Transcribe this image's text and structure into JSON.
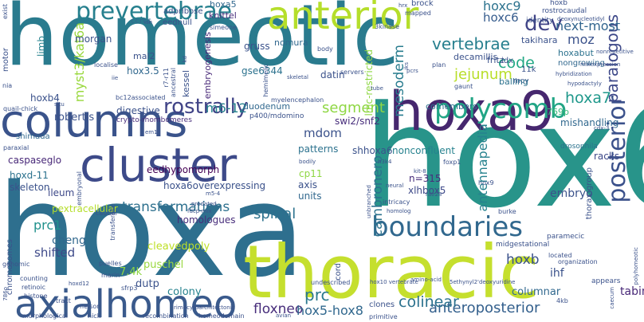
{
  "words": [
    {
      "text": "homeotic",
      "color": "#2a7b8e"
    },
    {
      "text": "hox6",
      "color": "#28948a"
    },
    {
      "text": "hoxa",
      "color": "#2e6f8e"
    },
    {
      "text": "thoracic",
      "color": "#c5df2e"
    },
    {
      "text": "columns",
      "color": "#3a538b"
    },
    {
      "text": "cluster",
      "color": "#3d4a89"
    },
    {
      "text": "hoxa9",
      "color": "#46276e"
    },
    {
      "text": "axialhomeo",
      "color": "#3a5a8c"
    },
    {
      "text": "anterior",
      "color": "#b5de2b"
    },
    {
      "text": "boundaries",
      "color": "#31688e"
    },
    {
      "text": "prevertebrae",
      "color": "#26808e"
    },
    {
      "text": "polycomb",
      "color": "#21a585"
    },
    {
      "text": "posterior",
      "color": "#3b518b"
    },
    {
      "text": "rostrally",
      "color": "#414487"
    },
    {
      "text": "dev",
      "color": "#414487"
    },
    {
      "text": "transformations",
      "color": "#2d708e"
    },
    {
      "text": "anteroposterior",
      "color": "#34608d"
    },
    {
      "text": "spinal",
      "color": "#2c728e"
    },
    {
      "text": "vertebrae",
      "color": "#277f8e"
    },
    {
      "text": "paralogous",
      "color": "#3e4989"
    },
    {
      "text": "mesoderm",
      "color": "#287c8e"
    },
    {
      "text": "jejunum",
      "color": "#b8de29"
    },
    {
      "text": "segment",
      "color": "#8fd744"
    },
    {
      "text": "code",
      "color": "#22a884"
    },
    {
      "text": "hoxa7",
      "color": "#1f988b"
    },
    {
      "text": "hoxc9",
      "color": "#2c728e"
    },
    {
      "text": "hoxc6",
      "color": "#365c8d"
    },
    {
      "text": "m6-12",
      "color": "#26828e"
    },
    {
      "text": "next-most",
      "color": "#32658e"
    },
    {
      "text": "moz",
      "color": "#3b528b"
    },
    {
      "text": "colinear",
      "color": "#2c728e"
    },
    {
      "text": "floxneo",
      "color": "#472d7b"
    },
    {
      "text": "hox5-hox8",
      "color": "#31688e"
    },
    {
      "text": "prc",
      "color": "#2a788e"
    },
    {
      "text": "prc1",
      "color": "#21918c"
    },
    {
      "text": "hoxb",
      "color": "#3b528b"
    },
    {
      "text": "shifted",
      "color": "#3e4a89"
    },
    {
      "text": "hoxb4",
      "color": "#3b528b"
    },
    {
      "text": "myst3/kat6a",
      "color": "#99d83d"
    },
    {
      "text": "cambronero",
      "color": "#2c728e"
    },
    {
      "text": "antennapedia",
      "color": "#26828e"
    },
    {
      "text": "mdom",
      "color": "#3b528b"
    },
    {
      "text": "embryo",
      "color": "#3b528b"
    },
    {
      "text": "columnar",
      "color": "#31688e"
    },
    {
      "text": "tabin",
      "color": "#482878"
    },
    {
      "text": "ihf",
      "color": "#3b528b"
    },
    {
      "text": "cheng",
      "color": "#31688e"
    },
    {
      "text": "dutp",
      "color": "#3b528b"
    },
    {
      "text": "7.4k",
      "color": "#8fd744"
    },
    {
      "text": "cleavedpoly",
      "color": "#bddf26"
    },
    {
      "text": "puschel",
      "color": "#98d83e"
    },
    {
      "text": "colony",
      "color": "#26828e"
    },
    {
      "text": "eedhypomorph",
      "color": "#440154"
    },
    {
      "text": "hoxa6overexpressing",
      "color": "#3b528b"
    },
    {
      "text": "homologues",
      "color": "#472d7b"
    },
    {
      "text": "pextracellular",
      "color": "#b5de2b"
    },
    {
      "text": "patterns",
      "color": "#2c728e"
    },
    {
      "text": "nonconfluent",
      "color": "#26828e"
    },
    {
      "text": "shhoxa6",
      "color": "#3b528b"
    },
    {
      "text": "xlhbox5",
      "color": "#3e4989"
    },
    {
      "text": "units",
      "color": "#31688e"
    },
    {
      "text": "axis",
      "color": "#3b528b"
    },
    {
      "text": "n=315",
      "color": "#472d7b"
    },
    {
      "text": "cp11",
      "color": "#8fd744"
    },
    {
      "text": "racks",
      "color": "#3e4989"
    },
    {
      "text": "drosophila",
      "color": "#2c728e"
    },
    {
      "text": "thorax-group",
      "color": "#3b528b"
    },
    {
      "text": "mishandling",
      "color": "#31688e"
    },
    {
      "text": "769p",
      "color": "#35b779"
    },
    {
      "text": "comembers",
      "color": "#2c728e"
    },
    {
      "text": "swi2/snf2",
      "color": "#472d7b"
    },
    {
      "text": "duodenum",
      "color": "#31688e"
    },
    {
      "text": "p400/mdomino",
      "color": "#3b528b"
    },
    {
      "text": "digestive",
      "color": "#3b528b"
    },
    {
      "text": "crypto-rhombomeres",
      "color": "#472d7b"
    },
    {
      "text": "robertis",
      "color": "#3b528b"
    },
    {
      "text": "hoxd-11",
      "color": "#2c728e"
    },
    {
      "text": "caspaseglo",
      "color": "#482878"
    },
    {
      "text": "skeleton",
      "color": "#3b528b"
    },
    {
      "text": "ileum",
      "color": "#3e4989"
    },
    {
      "text": "shimada",
      "color": "#31688e"
    },
    {
      "text": "gse6344",
      "color": "#2c728e"
    },
    {
      "text": "datin",
      "color": "#3b528b"
    },
    {
      "text": "gruss",
      "color": "#3b528b"
    },
    {
      "text": "lmc-restricted",
      "color": "#8fd744"
    },
    {
      "text": "embryogenesis",
      "color": "#482878"
    },
    {
      "text": "kessel",
      "color": "#3b528b"
    },
    {
      "text": "hox3.5",
      "color": "#31688e"
    },
    {
      "text": "mal2",
      "color": "#3b528b"
    },
    {
      "text": "limb",
      "color": "#26828e"
    },
    {
      "text": "morgan",
      "color": "#3b528b"
    },
    {
      "text": "hoxa5",
      "color": "#31688e"
    },
    {
      "text": "knittel",
      "color": "#472d7b"
    },
    {
      "text": "adpribose",
      "color": "#3b528b"
    },
    {
      "text": "eednull",
      "color": "#3b528b"
    },
    {
      "text": "ccrcc",
      "color": "#31688e"
    },
    {
      "text": "nomura",
      "color": "#31688e"
    },
    {
      "text": "fritz",
      "color": "#3b528b"
    },
    {
      "text": "takihara",
      "color": "#3b528b"
    },
    {
      "text": "decamillis",
      "color": "#3b528b"
    },
    {
      "text": "idx",
      "color": "#3b528b"
    },
    {
      "text": "11k",
      "color": "#3b528b"
    },
    {
      "text": "moy",
      "color": "#3b528b"
    },
    {
      "text": "balling",
      "color": "#2c728e"
    },
    {
      "text": "hoxabut",
      "color": "#2c728e"
    },
    {
      "text": "nongrowing",
      "color": "#31688e"
    },
    {
      "text": "rostrocaudal",
      "color": "#3b528b"
    },
    {
      "text": "deoxynucleotidyl",
      "color": "#3b528b"
    },
    {
      "text": "identity",
      "color": "#3b528b"
    },
    {
      "text": "brock",
      "color": "#3b528b"
    },
    {
      "text": "mapped",
      "color": "#3b528b"
    },
    {
      "text": "3kinase",
      "color": "#3b528b"
    },
    {
      "text": "simeone",
      "color": "#3b528b"
    },
    {
      "text": "hoxb",
      "color": "#3b528b"
    },
    {
      "text": "motor",
      "color": "#3b528b"
    },
    {
      "text": "exist",
      "color": "#3b528b"
    },
    {
      "text": "nia",
      "color": "#3b528b"
    },
    {
      "text": "servers",
      "color": "#3b528b"
    },
    {
      "text": "skeletal",
      "color": "#3b528b"
    },
    {
      "text": "hemimelic",
      "color": "#3b528b"
    },
    {
      "text": "localise",
      "color": "#3b528b"
    },
    {
      "text": "r7-r11",
      "color": "#3b528b"
    },
    {
      "text": "ancestral",
      "color": "#3b528b"
    },
    {
      "text": "bc12associated",
      "color": "#3b528b"
    },
    {
      "text": "myelencephalon",
      "color": "#3b528b"
    },
    {
      "text": "h3k4",
      "color": "#3b528b"
    },
    {
      "text": "quail-chick",
      "color": "#3b528b"
    },
    {
      "text": "situ",
      "color": "#3b528b"
    },
    {
      "text": "paraxial",
      "color": "#3b528b"
    },
    {
      "text": "embryonal",
      "color": "#3b528b"
    },
    {
      "text": "unbranched",
      "color": "#3b528b"
    },
    {
      "text": "bodily",
      "color": "#3b528b"
    },
    {
      "text": "foxp1",
      "color": "#3b528b"
    },
    {
      "text": "kit-8",
      "color": "#3b528b"
    },
    {
      "text": "rae28",
      "color": "#3b528b"
    },
    {
      "text": "hox9",
      "color": "#3b528b"
    },
    {
      "text": "intricacy",
      "color": "#3b528b"
    },
    {
      "text": "homolog",
      "color": "#3b528b"
    },
    {
      "text": "burke",
      "color": "#3b528b"
    },
    {
      "text": "located",
      "color": "#3b528b"
    },
    {
      "text": "midgestational",
      "color": "#3b528b"
    },
    {
      "text": "paramecic",
      "color": "#3b528b"
    },
    {
      "text": "organization",
      "color": "#3b528b"
    },
    {
      "text": "appears",
      "color": "#3b528b"
    },
    {
      "text": "cdx-3",
      "color": "#3b528b"
    },
    {
      "text": "genomic",
      "color": "#3b528b"
    },
    {
      "text": "puelles",
      "color": "#3b528b"
    },
    {
      "text": "marin",
      "color": "#3b528b"
    },
    {
      "text": "sfrp3",
      "color": "#3b528b"
    },
    {
      "text": "counting",
      "color": "#3b528b"
    },
    {
      "text": "retinoic",
      "color": "#3b528b"
    },
    {
      "text": "histone",
      "color": "#3b528b"
    },
    {
      "text": "tract",
      "color": "#3b528b"
    },
    {
      "text": "chromosomes",
      "color": "#3b528b"
    },
    {
      "text": "nelson",
      "color": "#3b528b"
    },
    {
      "text": "morphological",
      "color": "#3b528b"
    },
    {
      "text": "nick",
      "color": "#3b528b"
    },
    {
      "text": "recombination",
      "color": "#3b528b"
    },
    {
      "text": "homeodomain",
      "color": "#3b528b"
    },
    {
      "text": "rim4cytoarchitectonic",
      "color": "#3b528b"
    },
    {
      "text": "primitive",
      "color": "#3b528b"
    },
    {
      "text": "clones",
      "color": "#3b528b"
    },
    {
      "text": "undescribed",
      "color": "#3b528b"
    },
    {
      "text": "hox10 vertebrate",
      "color": "#3b528b"
    },
    {
      "text": "5ethynyl2'deoxyuridine",
      "color": "#3b528b"
    },
    {
      "text": "4kb",
      "color": "#3b528b"
    },
    {
      "text": "caecum",
      "color": "#3b528b"
    },
    {
      "text": "polyhomeotic",
      "color": "#3b528b"
    },
    {
      "text": "fdcp-mix",
      "color": "#3b528b"
    },
    {
      "text": "m5-4",
      "color": "#3b528b"
    },
    {
      "text": "cord",
      "color": "#3b528b"
    },
    {
      "text": "em1",
      "color": "#3b528b"
    },
    {
      "text": "caudal",
      "color": "#3b528b"
    },
    {
      "text": "neural",
      "color": "#3b528b"
    },
    {
      "text": "plan",
      "color": "#3b528b"
    },
    {
      "text": "pcrs",
      "color": "#3b528b"
    },
    {
      "text": "gaunt",
      "color": "#3b528b"
    },
    {
      "text": "tube",
      "color": "#3b528b"
    },
    {
      "text": "nonrepetitive",
      "color": "#3b528b"
    },
    {
      "text": "mixexpression",
      "color": "#3b528b"
    },
    {
      "text": "hybridization",
      "color": "#3b528b"
    },
    {
      "text": "hypodactyly",
      "color": "#3b528b"
    },
    {
      "text": "body",
      "color": "#3b528b"
    },
    {
      "text": "hrx",
      "color": "#3b528b"
    },
    {
      "text": "transferase",
      "color": "#3b528b"
    },
    {
      "text": "ish",
      "color": "#3b528b"
    },
    {
      "text": "kd",
      "color": "#3b528b"
    },
    {
      "text": "iie",
      "color": "#3b528b"
    },
    {
      "text": "iks",
      "color": "#3b528b"
    },
    {
      "text": "786o",
      "color": "#3b528b"
    },
    {
      "text": "predated",
      "color": "#3b528b"
    },
    {
      "text": "amino-acid",
      "color": "#3b528b"
    },
    {
      "text": "hoxd12",
      "color": "#3b528b"
    },
    {
      "text": "avian",
      "color": "#3b528b"
    },
    {
      "text": "m33",
      "color": "#3b528b"
    }
  ]
}
